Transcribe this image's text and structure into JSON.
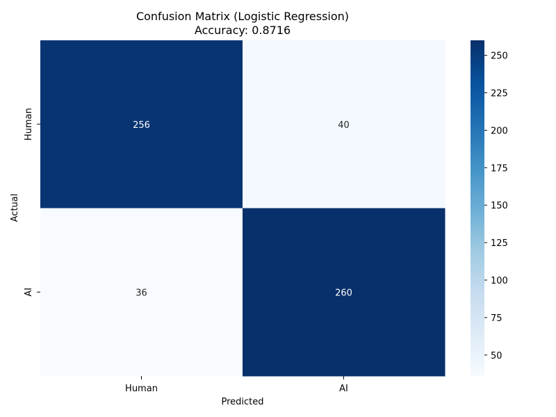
{
  "chart_data": {
    "type": "heatmap",
    "title_line1": "Confusion Matrix (Logistic Regression)",
    "title_line2": "Accuracy: 0.8716",
    "xlabel": "Predicted",
    "ylabel": "Actual",
    "x_categories": [
      "Human",
      "AI"
    ],
    "y_categories": [
      "Human",
      "AI"
    ],
    "matrix": [
      [
        256,
        40
      ],
      [
        36,
        260
      ]
    ],
    "colormap": "Blues",
    "color_range": [
      36,
      260
    ],
    "colorbar_ticks": [
      50,
      75,
      100,
      125,
      150,
      175,
      200,
      225,
      250
    ],
    "colorbar_labels": [
      "50",
      "75",
      "100",
      "125",
      "150",
      "175",
      "200",
      "225",
      "250"
    ]
  }
}
